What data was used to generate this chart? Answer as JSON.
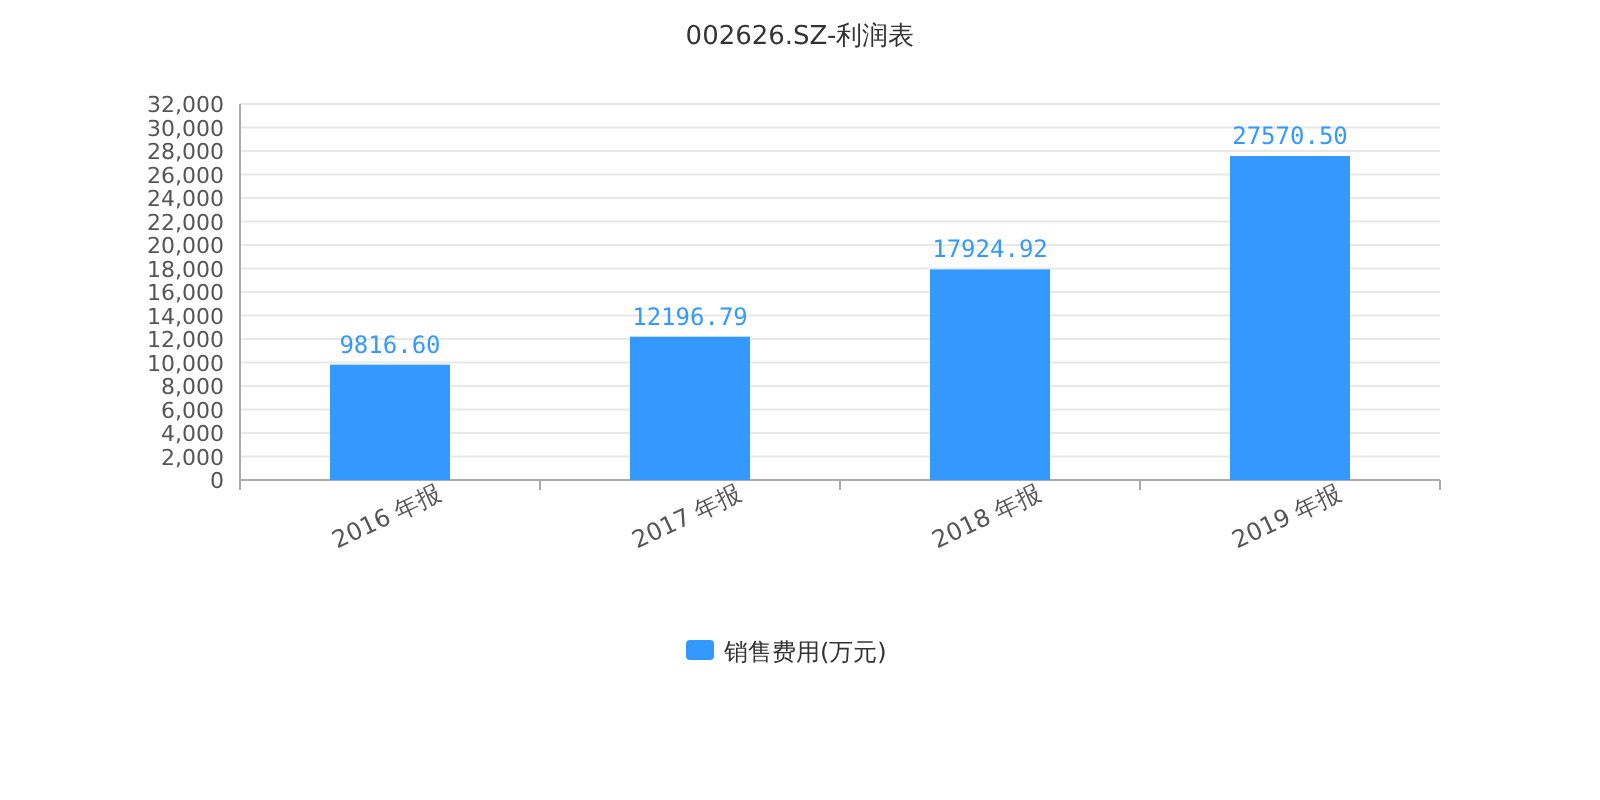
{
  "chart_data": {
    "type": "bar",
    "title": "002626.SZ-利润表",
    "categories": [
      "2016 年报",
      "2017 年报",
      "2018 年报",
      "2019 年报"
    ],
    "series": [
      {
        "name": "销售费用(万元)",
        "color": "#3399ff",
        "values": [
          9816.6,
          12196.79,
          17924.92,
          27570.5
        ],
        "value_labels": [
          "9816.60",
          "12196.79",
          "17924.92",
          "27570.50"
        ]
      }
    ],
    "ylim": [
      0,
      32000
    ],
    "yticks": [
      0,
      {
        "value": 2000,
        "label": "2,000"
      },
      {
        "value": 4000,
        "label": "4,000"
      },
      {
        "value": 6000,
        "label": "6,000"
      },
      {
        "value": 8000,
        "label": "8,000"
      },
      {
        "value": 10000,
        "label": "10,000"
      },
      {
        "value": 12000,
        "label": "12,000"
      },
      {
        "value": 14000,
        "label": "14,000"
      },
      {
        "value": 16000,
        "label": "16,000"
      },
      {
        "value": 18000,
        "label": "18,000"
      },
      {
        "value": 20000,
        "label": "20,000"
      },
      {
        "value": 22000,
        "label": "22,000"
      },
      {
        "value": 24000,
        "label": "24,000"
      },
      {
        "value": 26000,
        "label": "26,000"
      },
      {
        "value": 28000,
        "label": "28,000"
      },
      {
        "value": 30000,
        "label": "30,000"
      },
      {
        "value": 32000,
        "label": "32,000"
      }
    ],
    "grid": "y",
    "legend": "bottom"
  }
}
